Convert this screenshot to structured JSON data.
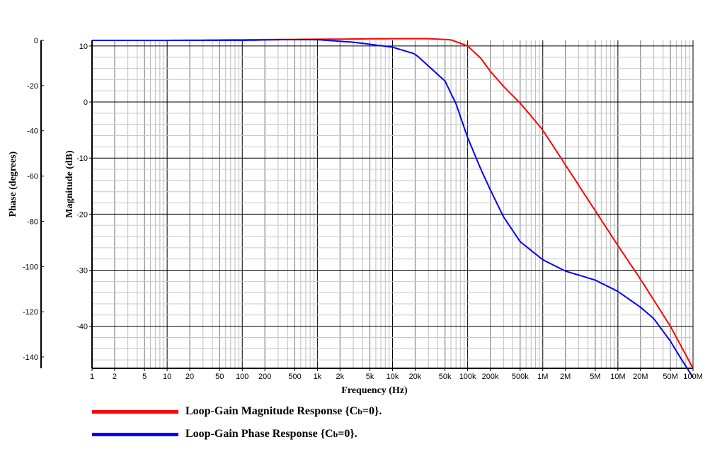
{
  "chart_data": {
    "type": "line",
    "xlabel": "Frequency (Hz)",
    "ylabel": "Magnitude (dB)",
    "y2label": "Phase (degrees)",
    "xscale": "log",
    "xlim": [
      1,
      100000000
    ],
    "ylim": [
      -47.5,
      11
    ],
    "y2lim": [
      -145,
      0
    ],
    "grid": true,
    "x_ticks": [
      {
        "v": 1,
        "label": "1"
      },
      {
        "v": 2,
        "label": "2"
      },
      {
        "v": 5,
        "label": "5"
      },
      {
        "v": 10,
        "label": "10"
      },
      {
        "v": 20,
        "label": "20"
      },
      {
        "v": 50,
        "label": "50"
      },
      {
        "v": 100,
        "label": "100"
      },
      {
        "v": 200,
        "label": "200"
      },
      {
        "v": 500,
        "label": "500"
      },
      {
        "v": 1000,
        "label": "1k"
      },
      {
        "v": 2000,
        "label": "2k"
      },
      {
        "v": 5000,
        "label": "5k"
      },
      {
        "v": 10000,
        "label": "10k"
      },
      {
        "v": 20000,
        "label": "20k"
      },
      {
        "v": 50000,
        "label": "50k"
      },
      {
        "v": 100000,
        "label": "100k"
      },
      {
        "v": 200000,
        "label": "200k"
      },
      {
        "v": 500000,
        "label": "500k"
      },
      {
        "v": 1000000,
        "label": "1M"
      },
      {
        "v": 2000000,
        "label": "2M"
      },
      {
        "v": 5000000,
        "label": "5M"
      },
      {
        "v": 10000000,
        "label": "10M"
      },
      {
        "v": 20000000,
        "label": "20M"
      },
      {
        "v": 50000000,
        "label": "50M"
      },
      {
        "v": 100000000,
        "label": "100M"
      }
    ],
    "y_ticks": [
      10,
      0,
      -10,
      -20,
      -30,
      -40
    ],
    "y2_ticks": [
      0,
      -20,
      -40,
      -60,
      -80,
      -100,
      -120,
      -140
    ],
    "series": [
      {
        "name": "Loop-Gain Magnitude Response",
        "axis": "y",
        "color": "#ff0000",
        "x": [
          1,
          10,
          100,
          1000,
          10000,
          30000,
          60000,
          100000,
          150000,
          200000,
          300000,
          500000,
          700000,
          1000000,
          2000000,
          5000000,
          10000000,
          20000000,
          50000000,
          100000000
        ],
        "y": [
          11,
          11,
          11.1,
          11.2,
          11.3,
          11.3,
          11.1,
          10,
          7.8,
          5.5,
          2.8,
          -0.2,
          -2.5,
          -5,
          -11.2,
          -19.4,
          -25.6,
          -31.6,
          -40,
          -47.5
        ]
      },
      {
        "name": "Loop-Gain Phase Response",
        "axis": "y2",
        "color": "#0000ff",
        "x": [
          1,
          100,
          300,
          1000,
          3000,
          10000,
          20000,
          50000,
          70000,
          100000,
          150000,
          200000,
          300000,
          500000,
          1000000,
          2000000,
          5000000,
          10000000,
          20000000,
          30000000,
          50000000,
          70000000,
          100000000
        ],
        "y": [
          0,
          0,
          0.3,
          0.3,
          -0.8,
          -3,
          -6,
          -18,
          -28,
          -43,
          -57,
          -66,
          -78,
          -89,
          -97,
          -102,
          -106,
          -111,
          -118,
          -123,
          -133,
          -141,
          -149
        ]
      }
    ]
  },
  "legend": {
    "magnitude_label": "Loop-Gain Magnitude Response",
    "phase_label": "Loop-Gain Phase Response",
    "condition_prefix": "{C",
    "condition_sub": "b",
    "condition_suffix": "=0}."
  }
}
